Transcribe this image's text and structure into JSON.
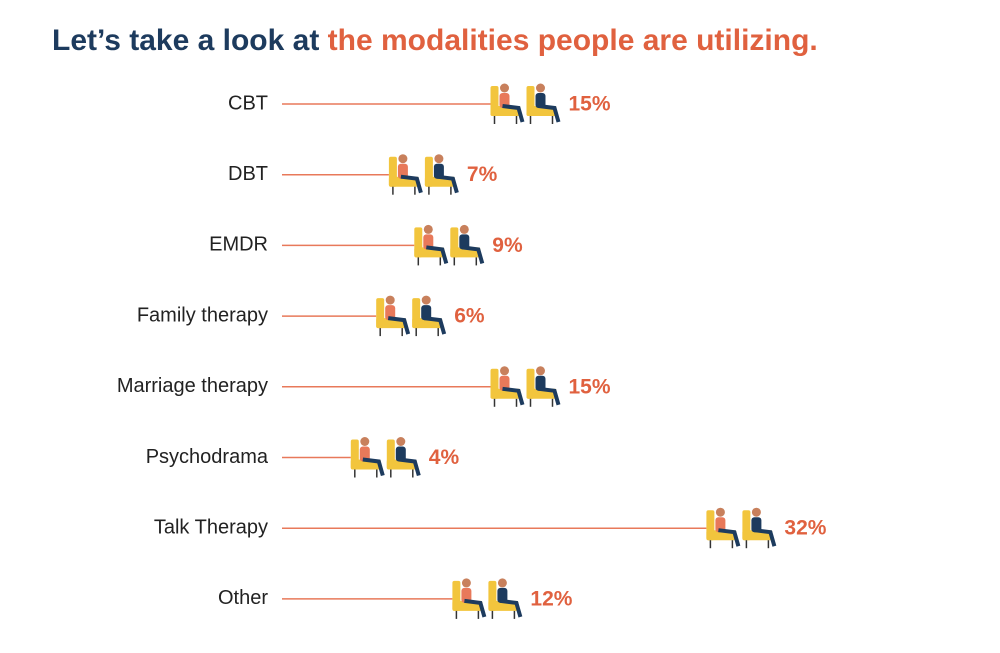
{
  "chart_data": {
    "type": "bar",
    "orientation": "horizontal",
    "title": "Let’s take a look at",
    "title_highlight": "the modalities people are utilizing.",
    "categories": [
      "CBT",
      "DBT",
      "EMDR",
      "Family therapy",
      "Marriage therapy",
      "Psychodrama",
      "Talk Therapy",
      "Other"
    ],
    "values": [
      15,
      7,
      9,
      6,
      15,
      4,
      32,
      12
    ],
    "value_labels": [
      "15%",
      "7%",
      "9%",
      "6%",
      "15%",
      "4%",
      "32%",
      "12%"
    ],
    "color": "#e8795a",
    "label_color": "#e0613f"
  }
}
